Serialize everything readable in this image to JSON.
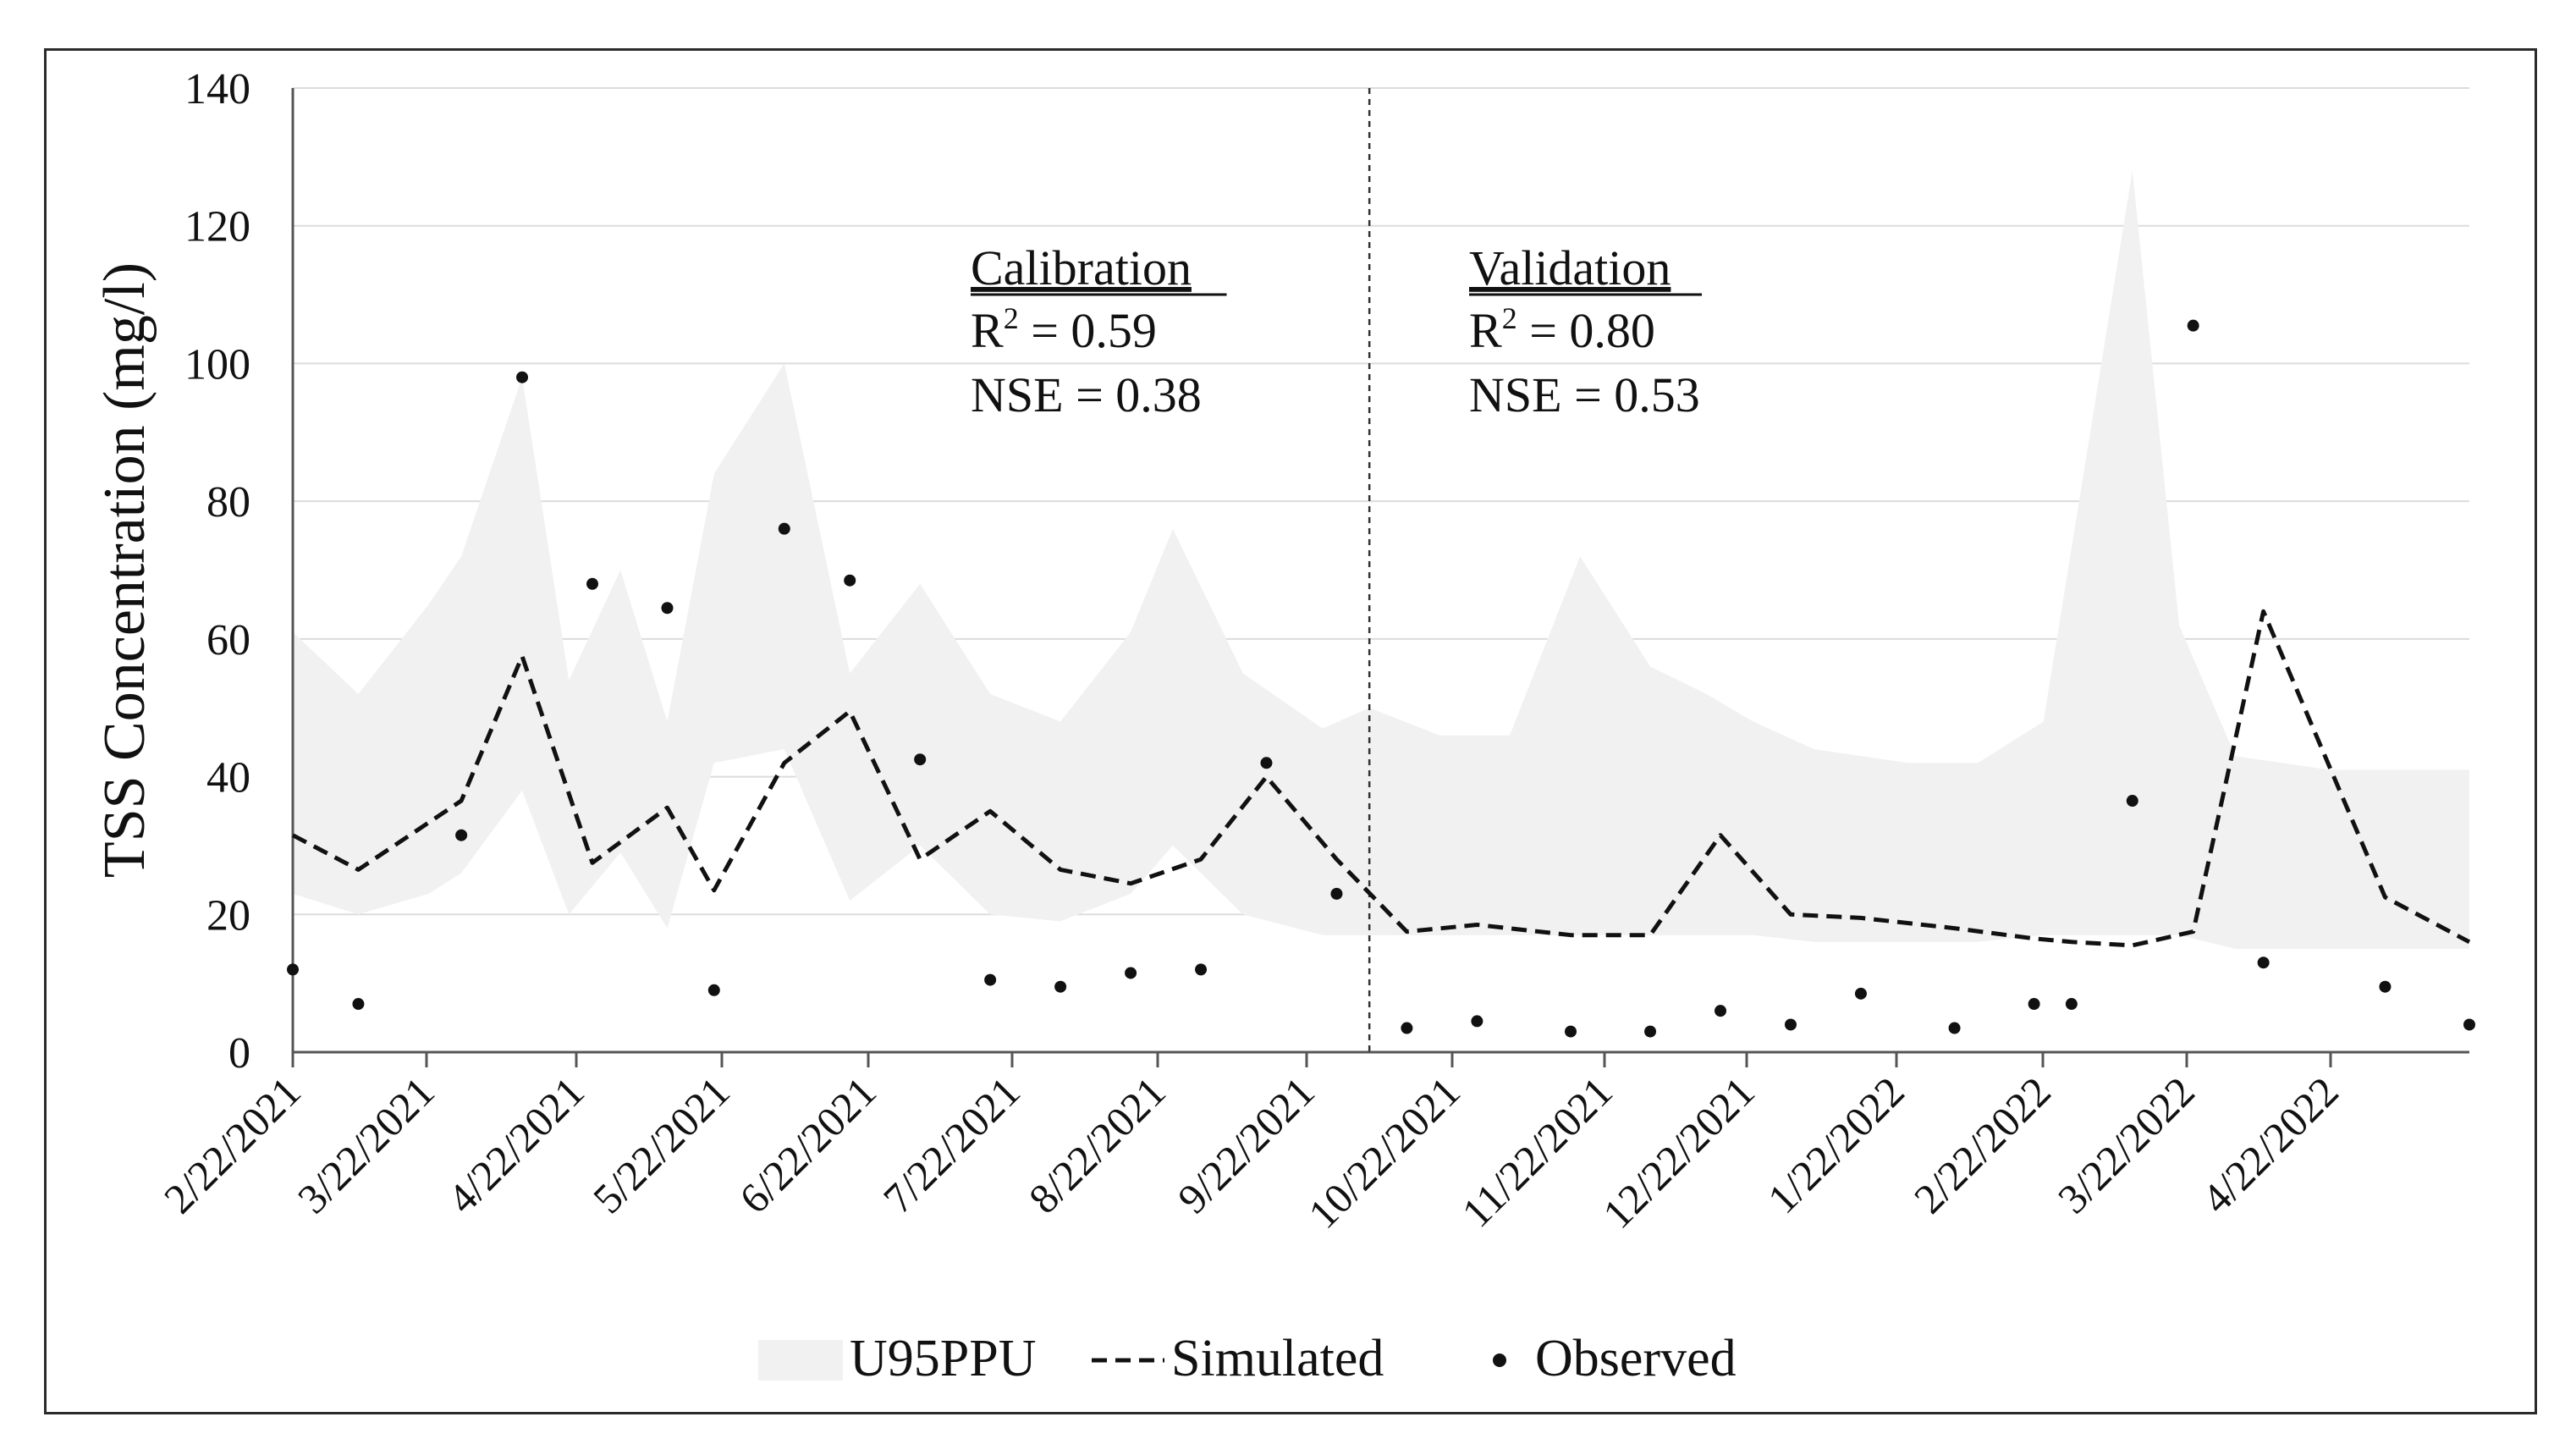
{
  "chart_data": {
    "type": "line",
    "title": "",
    "xlabel": "",
    "ylabel": "TSS Concentration (mg/l)",
    "ylim": [
      0,
      140
    ],
    "yticks": [
      0,
      20,
      40,
      60,
      80,
      100,
      120,
      140
    ],
    "x_tick_labels": [
      "2/22/2021",
      "3/22/2021",
      "4/22/2021",
      "5/22/2021",
      "6/22/2021",
      "7/22/2021",
      "8/22/2021",
      "9/22/2021",
      "10/22/2021",
      "11/22/2021",
      "12/22/2021",
      "1/22/2022",
      "2/22/2022",
      "3/22/2022",
      "4/22/2022"
    ],
    "x_domain_days": [
      0,
      465
    ],
    "grid": true,
    "legend_position": "bottom-center",
    "legend": [
      "U95PPU",
      "Simulated",
      "Observed"
    ],
    "series": [
      {
        "name": "U95PPU",
        "kind": "band",
        "x_days": [
          0,
          14,
          29,
          36,
          49,
          59,
          70,
          80,
          90,
          105,
          119,
          134,
          149,
          164,
          179,
          188,
          203,
          220,
          230,
          245,
          260,
          275,
          290,
          302,
          312,
          325,
          345,
          360,
          374,
          384,
          393,
          403,
          415,
          435,
          447,
          465
        ],
        "upper": [
          61,
          52,
          65,
          72,
          98,
          54,
          70,
          48,
          84,
          100,
          55,
          68,
          52,
          48,
          61,
          76,
          55,
          47,
          50,
          46,
          46,
          72,
          56,
          52,
          48,
          44,
          42,
          42,
          48,
          90,
          128,
          62,
          43,
          41,
          41,
          41
        ],
        "lower": [
          23,
          20,
          23,
          26,
          38,
          20,
          29,
          18,
          42,
          44,
          22,
          30,
          20,
          19,
          23,
          30,
          20,
          17,
          17,
          17,
          17,
          17,
          17,
          17,
          17,
          16,
          16,
          16,
          17,
          17,
          17,
          17,
          15,
          15,
          15,
          15
        ]
      },
      {
        "name": "Simulated",
        "kind": "line",
        "x_days": [
          0,
          14,
          36,
          49,
          64,
          80,
          90,
          105,
          119,
          134,
          149,
          164,
          179,
          194,
          208,
          223,
          238,
          253,
          273,
          290,
          305,
          320,
          335,
          355,
          372,
          380,
          393,
          406,
          421,
          447,
          465
        ],
        "values": [
          31.5,
          26.5,
          36.5,
          57.5,
          27.5,
          35.5,
          23.5,
          42,
          49.5,
          28,
          35,
          26.5,
          24.5,
          28,
          40,
          28,
          17.5,
          18.5,
          17,
          17,
          31.5,
          20,
          19.5,
          18,
          16.5,
          16,
          15.5,
          17.5,
          64,
          22.5,
          16
        ]
      },
      {
        "name": "Observed",
        "kind": "scatter",
        "x_days": [
          0,
          14,
          36,
          49,
          64,
          80,
          90,
          105,
          119,
          134,
          149,
          164,
          179,
          194,
          208,
          223,
          238,
          253,
          273,
          290,
          305,
          320,
          335,
          355,
          372,
          380,
          393,
          406,
          421,
          447,
          465
        ],
        "values": [
          12,
          7,
          31.5,
          98,
          68,
          64.5,
          9,
          76,
          68.5,
          42.5,
          10.5,
          9.5,
          11.5,
          12,
          42,
          23,
          3.5,
          4.5,
          3,
          3,
          6,
          4,
          8.5,
          3.5,
          7,
          7,
          36.5,
          105.5,
          13,
          9.5,
          4
        ]
      }
    ],
    "period_divider_day": 230,
    "annotations": [
      {
        "heading": "Calibration",
        "r2_label": "R",
        "r2_sup": "2",
        "r2_text": " = 0.59",
        "nse_text": "NSE = 0.38"
      },
      {
        "heading": "Validation",
        "r2_label": "R",
        "r2_sup": "2",
        "r2_text": " = 0.80",
        "nse_text": "NSE = 0.53"
      }
    ],
    "colors": {
      "band": "#f1f1f1",
      "simulated": "#111111",
      "observed": "#111111",
      "grid": "#dcdcdc",
      "axis": "#555555",
      "divider": "#333333",
      "text": "#111111"
    }
  }
}
